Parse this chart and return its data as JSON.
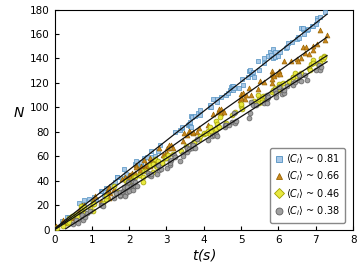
{
  "title": "",
  "xlabel": "$t$(s)",
  "ylabel": "$N$",
  "xlim": [
    0,
    8
  ],
  "ylim": [
    0,
    180
  ],
  "xticks": [
    0,
    1,
    2,
    3,
    4,
    5,
    6,
    7,
    8
  ],
  "yticks": [
    0,
    20,
    40,
    60,
    80,
    100,
    120,
    140,
    160,
    180
  ],
  "series": [
    {
      "label": "$\\langle C_i \\rangle$ ~ 0.81",
      "slope": 24.2,
      "intercept": 0.5,
      "color_face": "#a8c8e8",
      "color_edge": "#5090c0",
      "marker": "s",
      "markersize": 3.5,
      "noise_std": 2.5,
      "fit_slope": 24.0,
      "fit_intercept": 1.0,
      "fit_start": 0.0,
      "fit_end": 7.3
    },
    {
      "label": "$\\langle C_i \\rangle$ ~ 0.66",
      "slope": 21.5,
      "intercept": 0.5,
      "color_face": "#cc8820",
      "color_edge": "#996600",
      "marker": "^",
      "markersize": 3.5,
      "noise_std": 2.5,
      "fit_slope": 21.5,
      "fit_intercept": 0.5,
      "fit_start": 0.0,
      "fit_end": 7.3
    },
    {
      "label": "$\\langle C_i \\rangle$ ~ 0.46",
      "slope": 19.5,
      "intercept": 0.0,
      "color_face": "#e8e840",
      "color_edge": "#a0a000",
      "marker": "o",
      "markersize": 3.5,
      "noise_std": 2.5,
      "fit_slope": 19.5,
      "fit_intercept": 0.0,
      "fit_start": 0.0,
      "fit_end": 7.3
    },
    {
      "label": "$\\langle C_i \\rangle$ ~ 0.38",
      "slope": 19.5,
      "intercept": -5.0,
      "color_face": "#a0a0a0",
      "color_edge": "#606060",
      "marker": "o",
      "markersize": 3.5,
      "noise_std": 2.5,
      "fit_slope": 19.5,
      "fit_intercept": -5.0,
      "fit_start": 0.3,
      "fit_end": 7.3
    }
  ],
  "n_points": 110,
  "t_max": 7.3,
  "background_color": "#ffffff",
  "fit_line_color": "#111111",
  "legend_fontsize": 7,
  "axis_label_fontsize": 10
}
